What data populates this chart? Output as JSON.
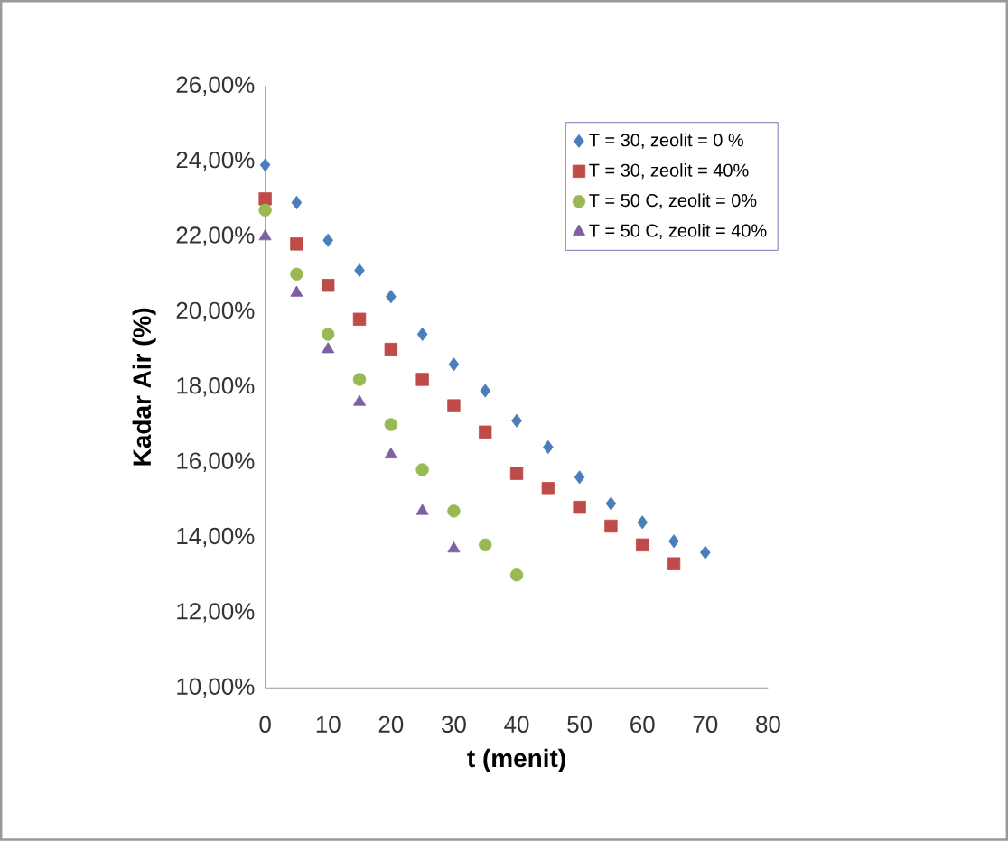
{
  "chart_data": {
    "type": "scatter",
    "xlabel": "t (menit)",
    "ylabel": "Kadar Air (%)",
    "xlim": [
      0,
      80
    ],
    "xticks": [
      0,
      10,
      20,
      30,
      40,
      50,
      60,
      70,
      80
    ],
    "ylim": [
      10,
      26
    ],
    "yticks": [
      {
        "value": 10,
        "label": "10,00%"
      },
      {
        "value": 12,
        "label": "12,00%"
      },
      {
        "value": 14,
        "label": "14,00%"
      },
      {
        "value": 16,
        "label": "16,00%"
      },
      {
        "value": 18,
        "label": "18,00%"
      },
      {
        "value": 20,
        "label": "20,00%"
      },
      {
        "value": 22,
        "label": "22,00%"
      },
      {
        "value": 24,
        "label": "24,00%"
      },
      {
        "value": 26,
        "label": "26,00%"
      }
    ],
    "grid": false,
    "legend": "top right",
    "series": [
      {
        "name": "T = 30, zeolit = 0 %",
        "color": "#4a7ebb",
        "marker": "diamond",
        "x": [
          0,
          5,
          10,
          15,
          20,
          25,
          30,
          35,
          40,
          45,
          50,
          55,
          60,
          65,
          70
        ],
        "values": [
          23.9,
          22.9,
          21.9,
          21.1,
          20.4,
          19.4,
          18.6,
          17.9,
          17.1,
          16.4,
          15.6,
          14.9,
          14.4,
          13.9,
          13.6
        ]
      },
      {
        "name": "T = 30, zeolit = 40%",
        "color": "#be4b48",
        "marker": "square",
        "x": [
          0,
          5,
          10,
          15,
          20,
          25,
          30,
          35,
          40,
          45,
          50,
          55,
          60,
          65
        ],
        "values": [
          23.0,
          21.8,
          20.7,
          19.8,
          19.0,
          18.2,
          17.5,
          16.8,
          15.7,
          15.3,
          14.8,
          14.3,
          13.8,
          13.3
        ]
      },
      {
        "name": "T = 50 C, zeolit = 0%",
        "color": "#98b954",
        "marker": "circle",
        "x": [
          0,
          5,
          10,
          15,
          20,
          25,
          30,
          35,
          40
        ],
        "values": [
          22.7,
          21.0,
          19.4,
          18.2,
          17.0,
          15.8,
          14.7,
          13.8,
          13.0
        ]
      },
      {
        "name": "T = 50 C, zeolit = 40%",
        "color": "#7d60a0",
        "marker": "triangle",
        "x": [
          0,
          5,
          10,
          15,
          20,
          25,
          30
        ],
        "values": [
          22.0,
          20.5,
          19.0,
          17.6,
          16.2,
          14.7,
          13.7
        ]
      }
    ]
  }
}
